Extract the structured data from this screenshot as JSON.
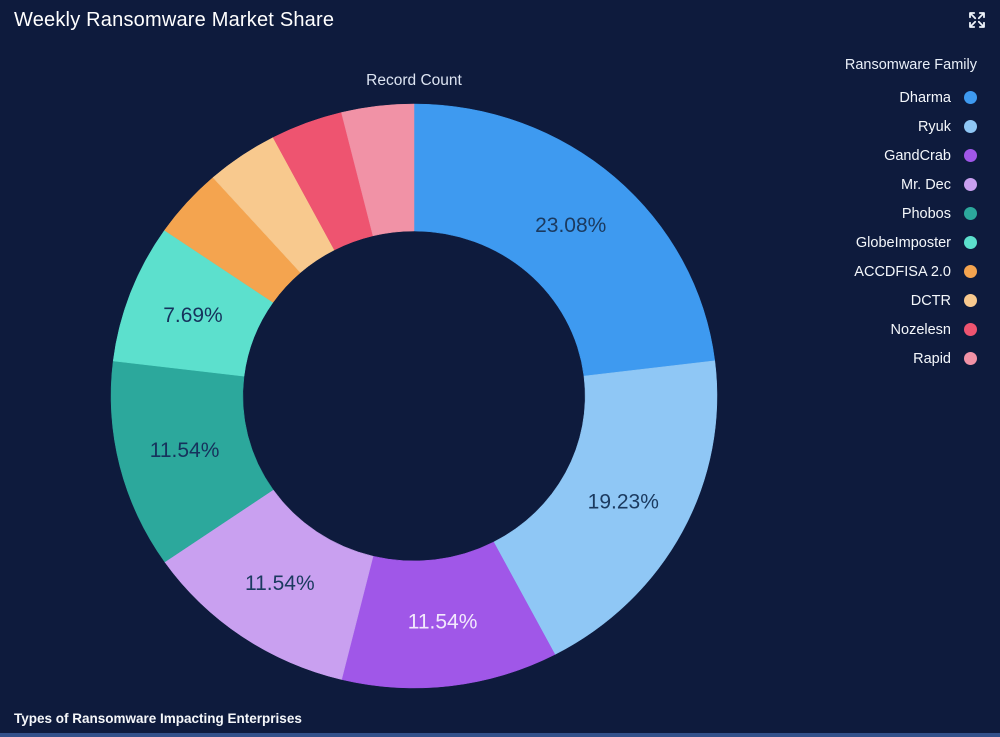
{
  "header": {
    "title": "Weekly Ransomware Market Share"
  },
  "footer": {
    "label": "Types of Ransomware Impacting Enterprises"
  },
  "chart_data": {
    "type": "pie",
    "subtype": "donut",
    "title": "Record Count",
    "legend_title": "Ransomware Family",
    "legend_position": "right",
    "start_angle_deg": 0,
    "direction": "clockwise",
    "hole_ratio": 0.565,
    "background": "#0e1b3d",
    "slices": [
      {
        "name": "Dharma",
        "pct": 23.08,
        "color": "#3e9af0",
        "label": "23.08%",
        "label_color": "#1b3a5f"
      },
      {
        "name": "Ryuk",
        "pct": 19.23,
        "color": "#8fc7f5",
        "label": "19.23%",
        "label_color": "#1b3a5f"
      },
      {
        "name": "GandCrab",
        "pct": 11.54,
        "color": "#a057e8",
        "label": "11.54%",
        "label_color": "#f2e9fd"
      },
      {
        "name": "Mr. Dec",
        "pct": 11.54,
        "color": "#c9a0f0",
        "label": "11.54%",
        "label_color": "#1b3a5f"
      },
      {
        "name": "Phobos",
        "pct": 11.54,
        "color": "#2ca89c",
        "label": "11.54%",
        "label_color": "#16325c"
      },
      {
        "name": "GlobeImposter",
        "pct": 7.69,
        "color": "#5ce0cd",
        "label": "7.69%",
        "label_color": "#16325c"
      },
      {
        "name": "ACCDFISA 2.0",
        "pct": 3.85,
        "color": "#f4a44f",
        "label": "",
        "label_color": ""
      },
      {
        "name": "DCTR",
        "pct": 3.85,
        "color": "#f8c98e",
        "label": "",
        "label_color": ""
      },
      {
        "name": "Nozelesn",
        "pct": 3.85,
        "color": "#ee5470",
        "label": "",
        "label_color": ""
      },
      {
        "name": "Rapid",
        "pct": 3.85,
        "color": "#f192a6",
        "label": "",
        "label_color": ""
      }
    ]
  }
}
